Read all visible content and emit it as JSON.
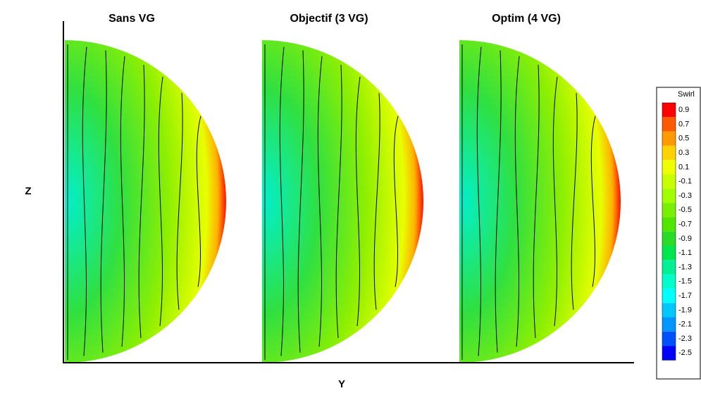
{
  "chart_data": {
    "type": "contour",
    "xlabel": "Y",
    "ylabel": "Z",
    "panels": [
      {
        "title": "Sans VG"
      },
      {
        "title": "Objectif (3 VG)"
      },
      {
        "title": "Optim (4 VG)"
      }
    ],
    "colorbar": {
      "title": "Swirl",
      "levels": [
        0.9,
        0.7,
        0.5,
        0.3,
        0.1,
        -0.1,
        -0.3,
        -0.5,
        -0.7,
        -0.9,
        -1.1,
        -1.3,
        -1.5,
        -1.7,
        -1.9,
        -2.1,
        -2.3,
        -2.5
      ],
      "colors": [
        "#ff0000",
        "#ff5a00",
        "#ff9a00",
        "#ffd200",
        "#f0ff00",
        "#c8ff00",
        "#a0ff00",
        "#78f000",
        "#50e600",
        "#28dc28",
        "#00e650",
        "#00f096",
        "#00ffc8",
        "#00ffff",
        "#00c8ff",
        "#0096ff",
        "#0050ff",
        "#0000ff"
      ]
    }
  }
}
